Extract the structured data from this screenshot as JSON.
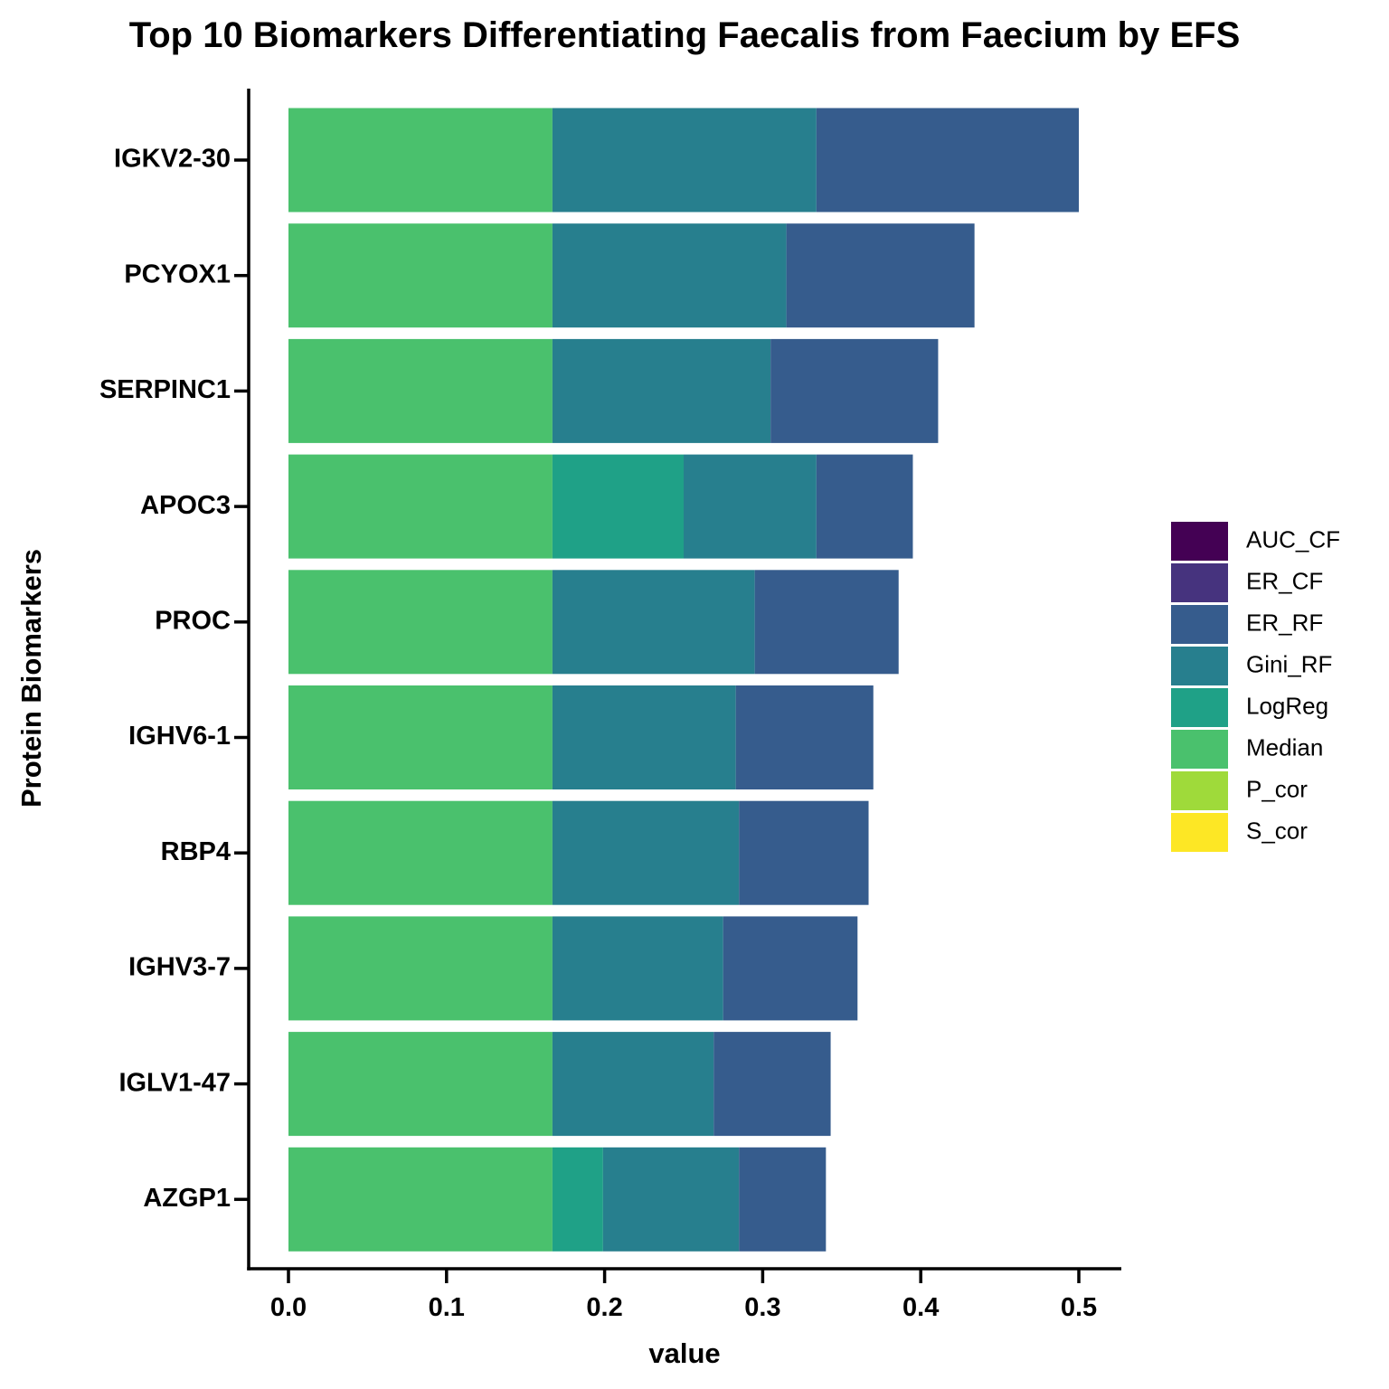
{
  "chart_data": {
    "type": "bar",
    "orientation": "horizontal",
    "stacked": true,
    "title": "Top 10 Biomarkers Differentiating Faecalis from Faecium by EFS",
    "xlabel": "value",
    "ylabel": "Protein Biomarkers",
    "xlim": [
      -0.025,
      0.525
    ],
    "xticks": [
      0.0,
      0.1,
      0.2,
      0.3,
      0.4,
      0.5
    ],
    "xtick_labels": [
      "0.0",
      "0.1",
      "0.2",
      "0.3",
      "0.4",
      "0.5"
    ],
    "grid": false,
    "legend_position": "right",
    "categories": [
      "IGKV2-30",
      "PCYOX1",
      "SERPINC1",
      "APOC3",
      "PROC",
      "IGHV6-1",
      "RBP4",
      "IGHV3-7",
      "IGLV1-47",
      "AZGP1"
    ],
    "legend": [
      {
        "name": "AUC_CF",
        "color": "#440154"
      },
      {
        "name": "ER_CF",
        "color": "#46337E"
      },
      {
        "name": "ER_RF",
        "color": "#365C8D"
      },
      {
        "name": "Gini_RF",
        "color": "#277F8E"
      },
      {
        "name": "LogReg",
        "color": "#1FA187"
      },
      {
        "name": "Median",
        "color": "#4AC16D"
      },
      {
        "name": "P_cor",
        "color": "#9FDA3A"
      },
      {
        "name": "S_cor",
        "color": "#FDE725"
      }
    ],
    "stack_order": [
      "Median",
      "LogReg",
      "Gini_RF",
      "ER_RF"
    ],
    "series": [
      {
        "name": "Median",
        "color": "#4AC16D",
        "values": [
          0.167,
          0.167,
          0.167,
          0.167,
          0.167,
          0.167,
          0.167,
          0.167,
          0.167,
          0.167
        ]
      },
      {
        "name": "LogReg",
        "color": "#1FA187",
        "values": [
          0,
          0,
          0,
          0.083,
          0,
          0,
          0,
          0,
          0,
          0.032
        ]
      },
      {
        "name": "Gini_RF",
        "color": "#277F8E",
        "values": [
          0.167,
          0.148,
          0.138,
          0.084,
          0.128,
          0.116,
          0.118,
          0.108,
          0.102,
          0.086
        ]
      },
      {
        "name": "ER_RF",
        "color": "#365C8D",
        "values": [
          0.166,
          0.119,
          0.106,
          0.061,
          0.091,
          0.087,
          0.082,
          0.085,
          0.074,
          0.055
        ]
      }
    ]
  }
}
